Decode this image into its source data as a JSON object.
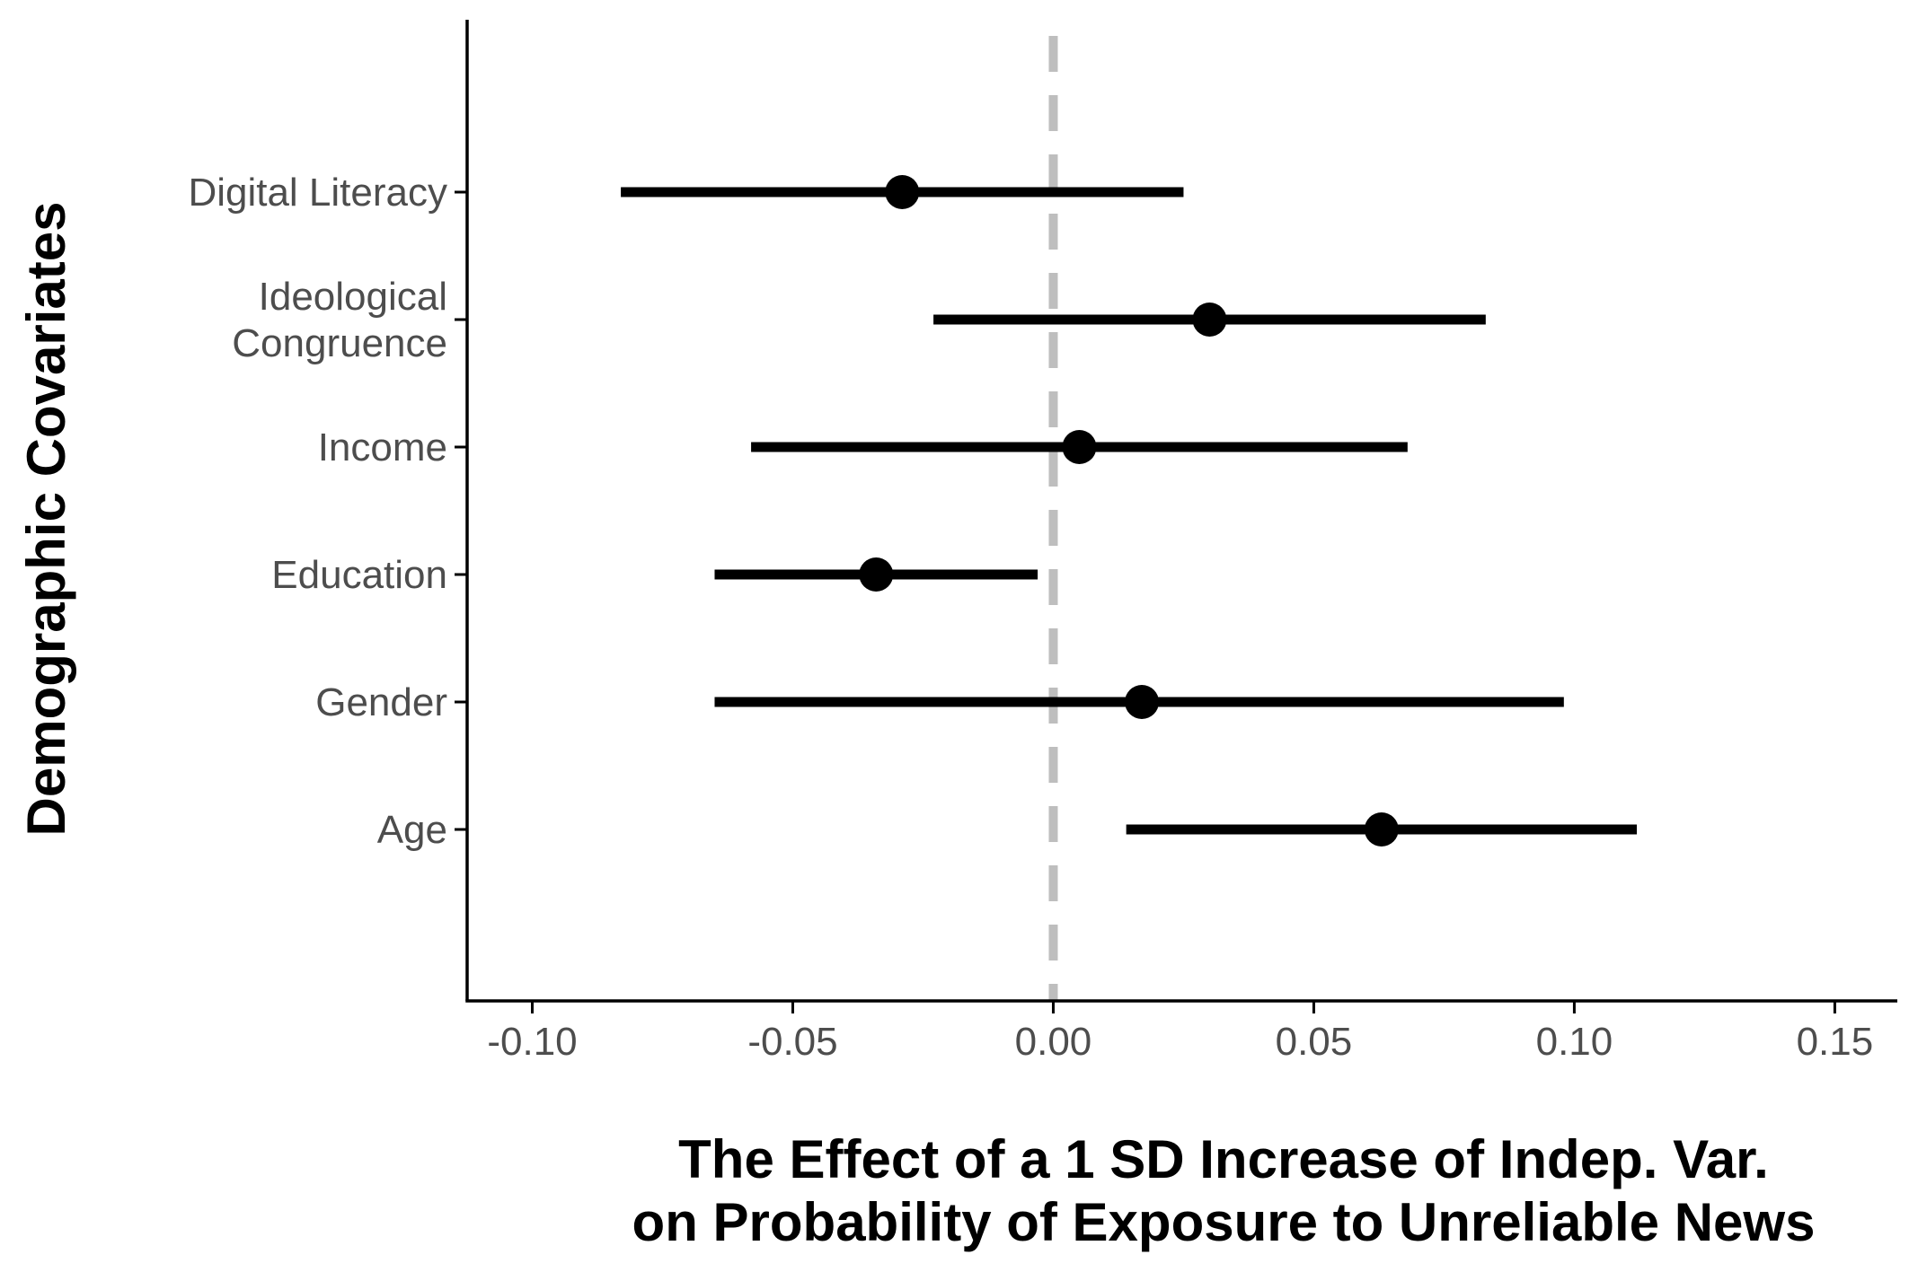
{
  "chart_data": {
    "type": "forest",
    "xlabel": [
      "The Effect of a 1 SD Increase of Indep. Var.",
      "on Probability of Exposure to Unreliable News"
    ],
    "ylabel": "Demographic Covariates",
    "xlim": [
      -0.1125,
      0.162
    ],
    "x_ticks": [
      -0.1,
      -0.05,
      0.0,
      0.05,
      0.1,
      0.15
    ],
    "x_tick_labels": [
      "-0.10",
      "-0.05",
      "0.00",
      "0.05",
      "0.10",
      "0.15"
    ],
    "reference_line": {
      "x": 0.0,
      "style": "dashed",
      "color": "#bebebe"
    },
    "grid": false,
    "legend": "none",
    "colors": {
      "estimate": "#000000",
      "axis": "#000000",
      "tick_label": "#4d4d4d",
      "reference": "#bebebe"
    },
    "rows": [
      {
        "label": [
          "Digital Literacy"
        ],
        "estimate": -0.029,
        "lower": -0.083,
        "upper": 0.025
      },
      {
        "label": [
          "Ideological",
          "Congruence"
        ],
        "estimate": 0.03,
        "lower": -0.023,
        "upper": 0.083
      },
      {
        "label": [
          "Income"
        ],
        "estimate": 0.005,
        "lower": -0.058,
        "upper": 0.068
      },
      {
        "label": [
          "Education"
        ],
        "estimate": -0.034,
        "lower": -0.065,
        "upper": -0.003
      },
      {
        "label": [
          "Gender"
        ],
        "estimate": 0.017,
        "lower": -0.065,
        "upper": 0.098
      },
      {
        "label": [
          "Age"
        ],
        "estimate": 0.063,
        "lower": 0.014,
        "upper": 0.112
      }
    ]
  }
}
